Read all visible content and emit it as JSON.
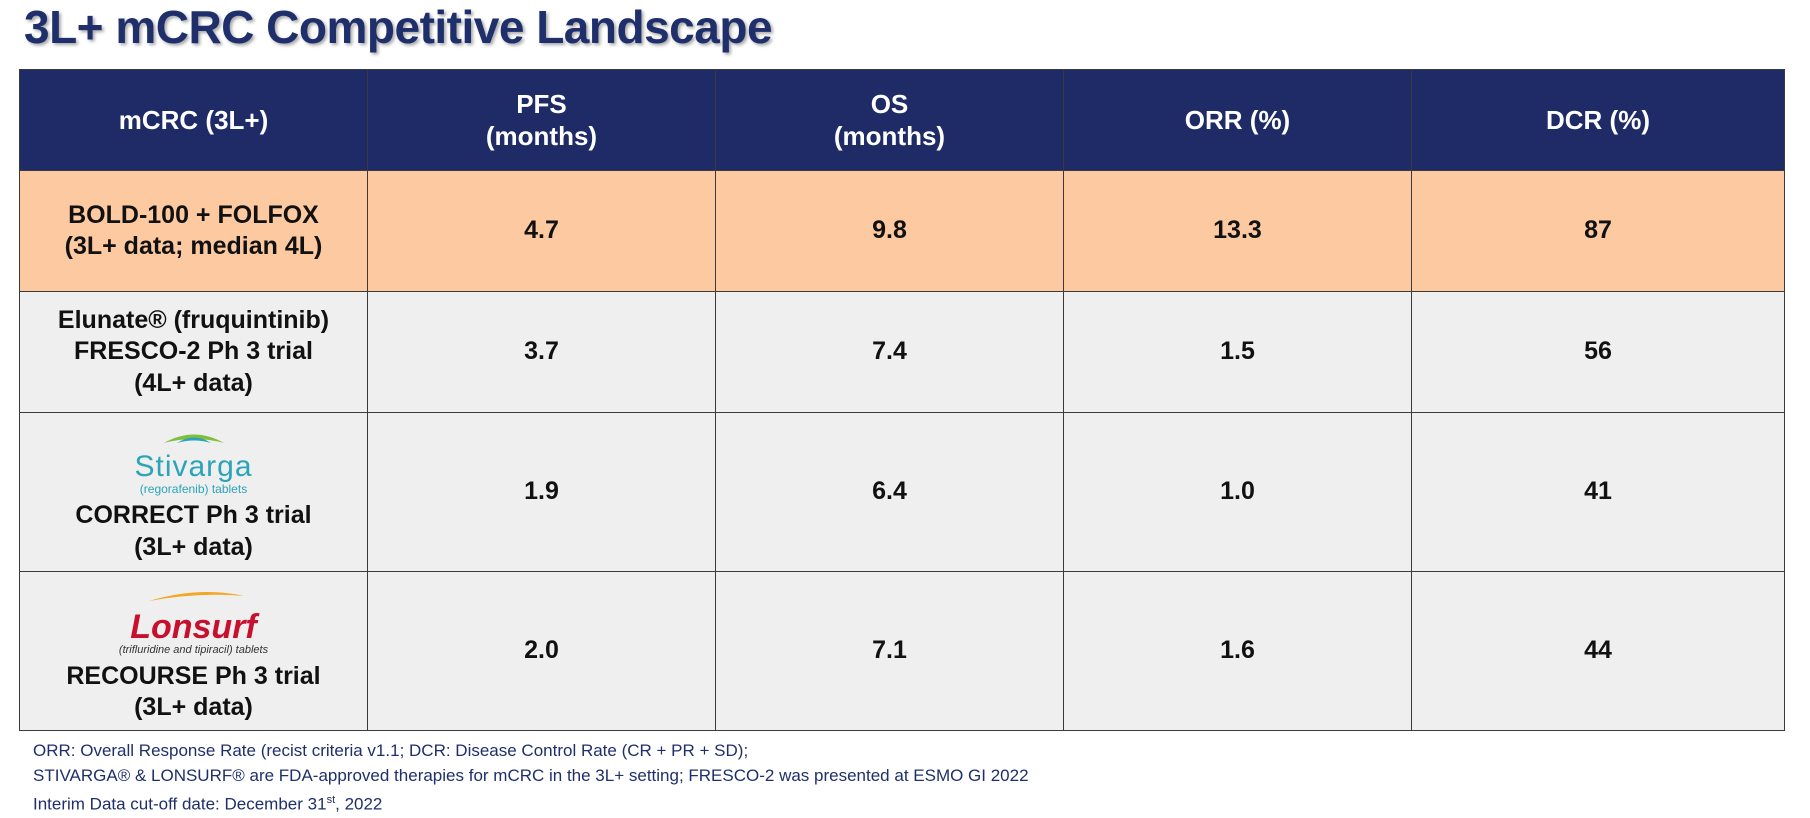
{
  "title": "3L+ mCRC Competitive Landscape",
  "header": {
    "col1": "mCRC (3L+)",
    "col2": [
      "PFS",
      "(months)"
    ],
    "col3": [
      "OS",
      "(months)"
    ],
    "col4": "ORR (%)",
    "col5": "DCR (%)"
  },
  "rows": [
    {
      "label": [
        "BOLD-100 + FOLFOX",
        "(3L+ data; median 4L)"
      ],
      "pfs": "4.7",
      "os": "9.8",
      "orr": "13.3",
      "dcr": "87"
    },
    {
      "label": [
        "Elunate® (fruquintinib)",
        "FRESCO-2 Ph 3 trial",
        "(4L+ data)"
      ],
      "pfs": "3.7",
      "os": "7.4",
      "orr": "1.5",
      "dcr": "56"
    },
    {
      "logo_brand": "Stivarga",
      "logo_sub": "(regorafenib) tablets",
      "label": [
        "CORRECT Ph 3 trial",
        "(3L+ data)"
      ],
      "pfs": "1.9",
      "os": "6.4",
      "orr": "1.0",
      "dcr": "41"
    },
    {
      "logo_brand": "Lonsurf",
      "logo_sub": "(trifluridine and tipiracil) tablets",
      "label": [
        "RECOURSE Ph 3 trial",
        "(3L+ data)"
      ],
      "pfs": "2.0",
      "os": "7.1",
      "orr": "1.6",
      "dcr": "44"
    }
  ],
  "footnotes": {
    "line1": "ORR: Overall Response Rate (recist  criteria v1.1; DCR: Disease Control Rate (CR + PR + SD);",
    "line2": "STIVARGA® & LONSURF® are FDA-approved therapies for mCRC in the 3L+ setting; FRESCO-2 was presented at ESMO GI 2022",
    "line3_prefix": "Interim Data cut-off  date: December 31",
    "line3_sup": "st",
    "line3_suffix": ", 2022"
  },
  "colors": {
    "header_bg": "#1f2b66",
    "highlight_bg": "#fcc9a1",
    "row_bg": "#efefef",
    "title_color": "#1f2f6b",
    "stivarga_teal": "#29a4b8",
    "lonsurf_red": "#c8102e"
  }
}
